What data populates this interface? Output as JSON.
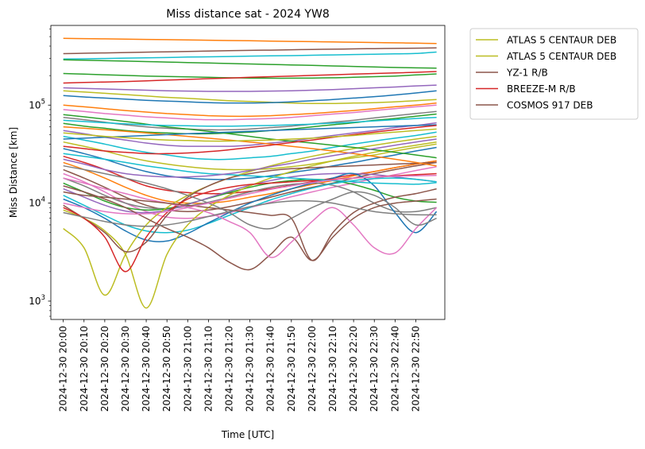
{
  "chart_data": {
    "type": "line",
    "title": "Miss distance sat - 2024 YW8",
    "xlabel": "Time [UTC]",
    "ylabel": "Miss Distance [km]",
    "yscale": "log",
    "ylim": [
      650,
      650000
    ],
    "xlim": [
      "2024-12-30 19:54",
      "2024-12-30 23:04"
    ],
    "y_ticks": [
      {
        "value": 1000,
        "label": "10",
        "exp": "3"
      },
      {
        "value": 10000,
        "label": "10",
        "exp": "4"
      },
      {
        "value": 100000,
        "label": "10",
        "exp": "5"
      }
    ],
    "x_ticks": [
      "2024-12-30 20:00",
      "2024-12-30 20:10",
      "2024-12-30 20:20",
      "2024-12-30 20:30",
      "2024-12-30 20:40",
      "2024-12-30 20:50",
      "2024-12-30 21:00",
      "2024-12-30 21:10",
      "2024-12-30 21:20",
      "2024-12-30 21:30",
      "2024-12-30 21:40",
      "2024-12-30 21:50",
      "2024-12-30 22:00",
      "2024-12-30 22:10",
      "2024-12-30 22:20",
      "2024-12-30 22:30",
      "2024-12-30 22:40",
      "2024-12-30 22:50"
    ],
    "grid": false,
    "legend_position": "outside-right-top",
    "legend": [
      {
        "name": "ATLAS 5 CENTAUR DEB",
        "color": "#bcbd22"
      },
      {
        "name": "ATLAS 5 CENTAUR DEB",
        "color": "#bcbd22"
      },
      {
        "name": "YZ-1 R/B",
        "color": "#8c564b"
      },
      {
        "name": "BREEZE-M R/B",
        "color": "#d62728"
      },
      {
        "name": "COSMOS 917 DEB",
        "color": "#8c564b"
      }
    ],
    "palette": [
      "#1f77b4",
      "#ff7f0e",
      "#2ca02c",
      "#d62728",
      "#9467bd",
      "#8c564b",
      "#e377c2",
      "#7f7f7f",
      "#bcbd22",
      "#17becf"
    ],
    "x_minutes": [
      0,
      10,
      20,
      30,
      40,
      50,
      60,
      70,
      80,
      90,
      100,
      110,
      120,
      130,
      140,
      150,
      160,
      170,
      180
    ],
    "x_start": "2024-12-30 20:00",
    "series": [
      {
        "color": "#ff7f0e",
        "values": [
          480000,
          477000,
          474000,
          471000,
          468000,
          465000,
          462000,
          459000,
          456000,
          453000,
          450000,
          447000,
          444000,
          441000,
          438000,
          435000,
          432000,
          429000,
          425000
        ]
      },
      {
        "color": "#8c564b",
        "values": [
          335000,
          338000,
          341000,
          344000,
          347000,
          350000,
          353000,
          356000,
          359000,
          362000,
          364000,
          367000,
          370000,
          372000,
          375000,
          377000,
          379000,
          381000,
          383000
        ]
      },
      {
        "color": "#17becf",
        "values": [
          295000,
          297000,
          299000,
          302000,
          304000,
          306000,
          309000,
          311000,
          313000,
          316000,
          318000,
          320000,
          323000,
          325000,
          328000,
          330000,
          333000,
          336000,
          348000
        ]
      },
      {
        "color": "#2ca02c",
        "values": [
          290000,
          287000,
          284000,
          281000,
          278000,
          275000,
          272000,
          269000,
          266000,
          263000,
          260000,
          257000,
          254000,
          251000,
          248000,
          245000,
          242000,
          240000,
          238000
        ]
      },
      {
        "color": "#2ca02c",
        "values": [
          210000,
          207000,
          204000,
          201000,
          198000,
          196000,
          194000,
          192000,
          190000,
          189000,
          188000,
          188000,
          189000,
          190000,
          192000,
          195000,
          198000,
          203000,
          208000
        ]
      },
      {
        "color": "#d62728",
        "values": [
          168000,
          170000,
          172000,
          174000,
          177000,
          180000,
          183000,
          186000,
          189000,
          192000,
          195000,
          198000,
          201000,
          204000,
          207000,
          210000,
          213000,
          216000,
          220000
        ]
      },
      {
        "color": "#9467bd",
        "values": [
          150000,
          148000,
          146000,
          144000,
          142000,
          140000,
          139000,
          138000,
          138000,
          138000,
          139000,
          140000,
          142000,
          144000,
          147000,
          150000,
          153000,
          157000,
          160000
        ]
      },
      {
        "color": "#bcbd22",
        "values": [
          140000,
          136000,
          132000,
          128000,
          124000,
          120000,
          117000,
          114000,
          111000,
          109000,
          107000,
          105000,
          104000,
          104000,
          105000,
          106000,
          108000,
          111000,
          114000
        ]
      },
      {
        "color": "#1f77b4",
        "values": [
          125000,
          121000,
          118000,
          115000,
          112000,
          110000,
          108000,
          106000,
          105000,
          105000,
          106000,
          108000,
          111000,
          114000,
          118000,
          122000,
          127000,
          133000,
          140000
        ]
      },
      {
        "color": "#ff7f0e",
        "values": [
          100000,
          96000,
          92000,
          88000,
          85000,
          82000,
          80000,
          78000,
          77000,
          77000,
          78000,
          80000,
          82000,
          85000,
          88000,
          92000,
          96000,
          100000,
          105000
        ]
      },
      {
        "color": "#e377c2",
        "values": [
          90000,
          86000,
          82000,
          79000,
          76000,
          74000,
          72000,
          71000,
          71000,
          72000,
          73000,
          75000,
          78000,
          81000,
          84000,
          88000,
          92000,
          96000,
          100000
        ]
      },
      {
        "color": "#7f7f7f",
        "values": [
          75000,
          71000,
          67000,
          63000,
          60000,
          58000,
          57000,
          56000,
          56000,
          57000,
          59000,
          61000,
          64000,
          67000,
          70000,
          74000,
          78000,
          82000,
          86000
        ]
      },
      {
        "color": "#2ca02c",
        "values": [
          65000,
          61000,
          58000,
          55000,
          53000,
          52000,
          51000,
          51000,
          52000,
          53000,
          55000,
          57000,
          60000,
          63000,
          66000,
          70000,
          73000,
          77000,
          81000
        ]
      },
      {
        "color": "#9467bd",
        "values": [
          55000,
          51000,
          47000,
          44000,
          41000,
          39000,
          38000,
          38000,
          38000,
          39000,
          41000,
          43000,
          46000,
          49000,
          52000,
          55000,
          59000,
          62000,
          66000
        ]
      },
      {
        "color": "#17becf",
        "values": [
          48000,
          44000,
          40000,
          36000,
          33000,
          31000,
          29000,
          28000,
          28000,
          29000,
          30000,
          32000,
          34000,
          37000,
          40000,
          43000,
          46000,
          49000,
          53000
        ]
      },
      {
        "color": "#bcbd22",
        "values": [
          42000,
          38000,
          34000,
          30000,
          27000,
          25000,
          23500,
          22500,
          22000,
          22000,
          22500,
          23500,
          25000,
          27000,
          29000,
          31000,
          34000,
          37000,
          40000
        ]
      },
      {
        "color": "#1f77b4",
        "values": [
          36000,
          32000,
          28000,
          24000,
          21000,
          19000,
          18000,
          17500,
          17500,
          18000,
          19000,
          20500,
          22000,
          24000,
          26000,
          28500,
          31000,
          34000,
          37000
        ]
      },
      {
        "color": "#d62728",
        "values": [
          30000,
          26000,
          22000,
          18000,
          15000,
          13500,
          12800,
          12500,
          12600,
          13200,
          14000,
          15200,
          16500,
          18000,
          19500,
          21000,
          23000,
          25000,
          27000
        ]
      },
      {
        "color": "#ff7f0e",
        "values": [
          26000,
          22000,
          18000,
          14500,
          12000,
          10500,
          10000,
          10000,
          10500,
          11500,
          12500,
          14000,
          15500,
          17000,
          19000,
          21000,
          23000,
          25000,
          27000
        ]
      },
      {
        "color": "#8c564b",
        "values": [
          22000,
          18000,
          14500,
          11500,
          9500,
          8500,
          8200,
          8500,
          9200,
          10200,
          11500,
          13000,
          14500,
          16000,
          18000,
          20000,
          22000,
          24000,
          26000
        ]
      },
      {
        "color": "#e377c2",
        "values": [
          20000,
          16500,
          13000,
          10000,
          8200,
          7200,
          7000,
          7300,
          8000,
          9000,
          10200,
          11600,
          13000,
          14500,
          16000,
          17800,
          19500,
          21500,
          23500
        ]
      },
      {
        "color": "#7f7f7f",
        "values": [
          18000,
          15000,
          12000,
          10000,
          9000,
          8800,
          9300,
          10200,
          11500,
          13000,
          14500,
          15500,
          16000,
          15200,
          13000,
          10000,
          8300,
          8200,
          9000
        ]
      },
      {
        "color": "#2ca02c",
        "values": [
          16000,
          13000,
          10500,
          9000,
          8500,
          8800,
          9800,
          11200,
          12800,
          14500,
          16000,
          17000,
          17500,
          17000,
          15500,
          13500,
          11500,
          10500,
          10200
        ]
      },
      {
        "color": "#9467bd",
        "values": [
          14000,
          11500,
          9500,
          8300,
          8000,
          8500,
          9700,
          11300,
          13200,
          15200,
          17000,
          18500,
          19500,
          20000,
          20000,
          19500,
          18500,
          17500,
          16500
        ]
      },
      {
        "color": "#17becf",
        "values": [
          12000,
          9500,
          7500,
          6000,
          5200,
          5000,
          5300,
          6200,
          7500,
          9000,
          10800,
          12500,
          14200,
          15800,
          17000,
          17800,
          18000,
          17500,
          16500
        ]
      },
      {
        "color": "#1f77b4",
        "values": [
          11000,
          9000,
          7000,
          5200,
          4200,
          4100,
          4900,
          6300,
          8000,
          10000,
          12000,
          14000,
          16000,
          18000,
          20000,
          15000,
          8000,
          5000,
          8200
        ]
      },
      {
        "color": "#bcbd22",
        "values": [
          5500,
          3500,
          1150,
          3000,
          6000,
          9000,
          12000,
          15000,
          18000,
          21000,
          24000,
          27000,
          30000,
          33000,
          36000,
          39000,
          42000,
          45000,
          48000
        ]
      },
      {
        "color": "#bcbd22",
        "values": [
          8500,
          7000,
          5200,
          3000,
          850,
          3000,
          6000,
          9000,
          12000,
          15000,
          18000,
          21000,
          24000,
          27000,
          30000,
          33000,
          36000,
          39000,
          42000
        ]
      },
      {
        "color": "#8c564b",
        "values": [
          9500,
          7000,
          5000,
          3200,
          4000,
          7500,
          11500,
          15000,
          18000,
          20000,
          21500,
          22500,
          23000,
          23500,
          24000,
          24500,
          25000,
          25500,
          26000
        ]
      },
      {
        "color": "#d62728",
        "values": [
          9000,
          7000,
          4500,
          2000,
          4500,
          8000,
          11000,
          13000,
          14500,
          15500,
          16000,
          16500,
          17000,
          17500,
          18000,
          18500,
          19000,
          19500,
          20000
        ]
      },
      {
        "color": "#8c564b",
        "values": [
          15000,
          13000,
          11000,
          9000,
          7000,
          5500,
          4500,
          3500,
          2500,
          2100,
          3000,
          4500,
          2600,
          4500,
          7000,
          9000,
          10000,
          10500,
          11000
        ]
      },
      {
        "color": "#e377c2",
        "values": [
          18000,
          16000,
          14000,
          12500,
          11000,
          10000,
          9000,
          8000,
          6500,
          5000,
          2800,
          4000,
          6500,
          9000,
          6000,
          3500,
          3100,
          5500,
          9000
        ]
      },
      {
        "color": "#8c564b",
        "values": [
          13000,
          12000,
          11500,
          11000,
          10500,
          10000,
          9500,
          9000,
          8500,
          8000,
          7500,
          7000,
          2600,
          5000,
          8000,
          10000,
          11500,
          12500,
          14000
        ]
      },
      {
        "color": "#7f7f7f",
        "values": [
          24000,
          22000,
          20000,
          18000,
          16000,
          14000,
          12000,
          10000,
          8000,
          6000,
          5500,
          7000,
          9000,
          11000,
          13000,
          12000,
          9000,
          6000,
          7000
        ]
      },
      {
        "color": "#17becf",
        "values": [
          32000,
          30000,
          28000,
          26000,
          24000,
          22500,
          21000,
          20000,
          19500,
          19000,
          18500,
          18000,
          17500,
          17000,
          16500,
          16000,
          15800,
          15600,
          16200
        ]
      },
      {
        "color": "#ff7f0e",
        "values": [
          60000,
          58000,
          56000,
          54000,
          52000,
          50000,
          48000,
          46000,
          44000,
          42000,
          40000,
          38000,
          36000,
          34000,
          32000,
          30000,
          28000,
          26000,
          24000
        ]
      },
      {
        "color": "#2ca02c",
        "values": [
          80000,
          76000,
          72000,
          68000,
          64000,
          60000,
          57000,
          54000,
          51000,
          48000,
          45000,
          43000,
          41000,
          39000,
          37000,
          35000,
          33000,
          31000,
          29000
        ]
      },
      {
        "color": "#1f77b4",
        "values": [
          45000,
          46000,
          47000,
          48000,
          49000,
          50000,
          51000,
          52000,
          53000,
          54000,
          55000,
          56000,
          57000,
          58000,
          59000,
          60000,
          61000,
          62000,
          63000
        ]
      },
      {
        "color": "#d62728",
        "values": [
          38000,
          36000,
          34000,
          33000,
          32000,
          32000,
          32500,
          33500,
          35000,
          37000,
          39000,
          41500,
          44000,
          47000,
          50000,
          53000,
          56000,
          59000,
          62000
        ]
      },
      {
        "color": "#9467bd",
        "values": [
          28000,
          25000,
          22000,
          20000,
          19000,
          18500,
          18500,
          19000,
          20000,
          21500,
          23500,
          25500,
          28000,
          30500,
          33000,
          36000,
          39000,
          42000,
          45000
        ]
      },
      {
        "color": "#e377c2",
        "values": [
          10000,
          9000,
          8200,
          7800,
          7800,
          8200,
          9000,
          10000,
          11200,
          12500,
          13800,
          15000,
          16200,
          17200,
          18000,
          18500,
          18800,
          19000,
          19200
        ]
      },
      {
        "color": "#7f7f7f",
        "values": [
          8000,
          7200,
          6500,
          6000,
          5800,
          6000,
          6500,
          7300,
          8200,
          9200,
          10000,
          10500,
          10500,
          10000,
          9000,
          8200,
          7800,
          7600,
          7600
        ]
      },
      {
        "color": "#bcbd22",
        "values": [
          52000,
          50000,
          48000,
          46500,
          45000,
          44000,
          43500,
          43000,
          43000,
          43500,
          44000,
          45000,
          46000,
          47500,
          49000,
          51000,
          53000,
          55000,
          57000
        ]
      },
      {
        "color": "#17becf",
        "values": [
          70000,
          68000,
          66000,
          64500,
          63000,
          62000,
          61500,
          61000,
          61000,
          61500,
          62000,
          63000,
          64000,
          65500,
          67000,
          69000,
          71000,
          73000,
          75000
        ]
      }
    ]
  }
}
